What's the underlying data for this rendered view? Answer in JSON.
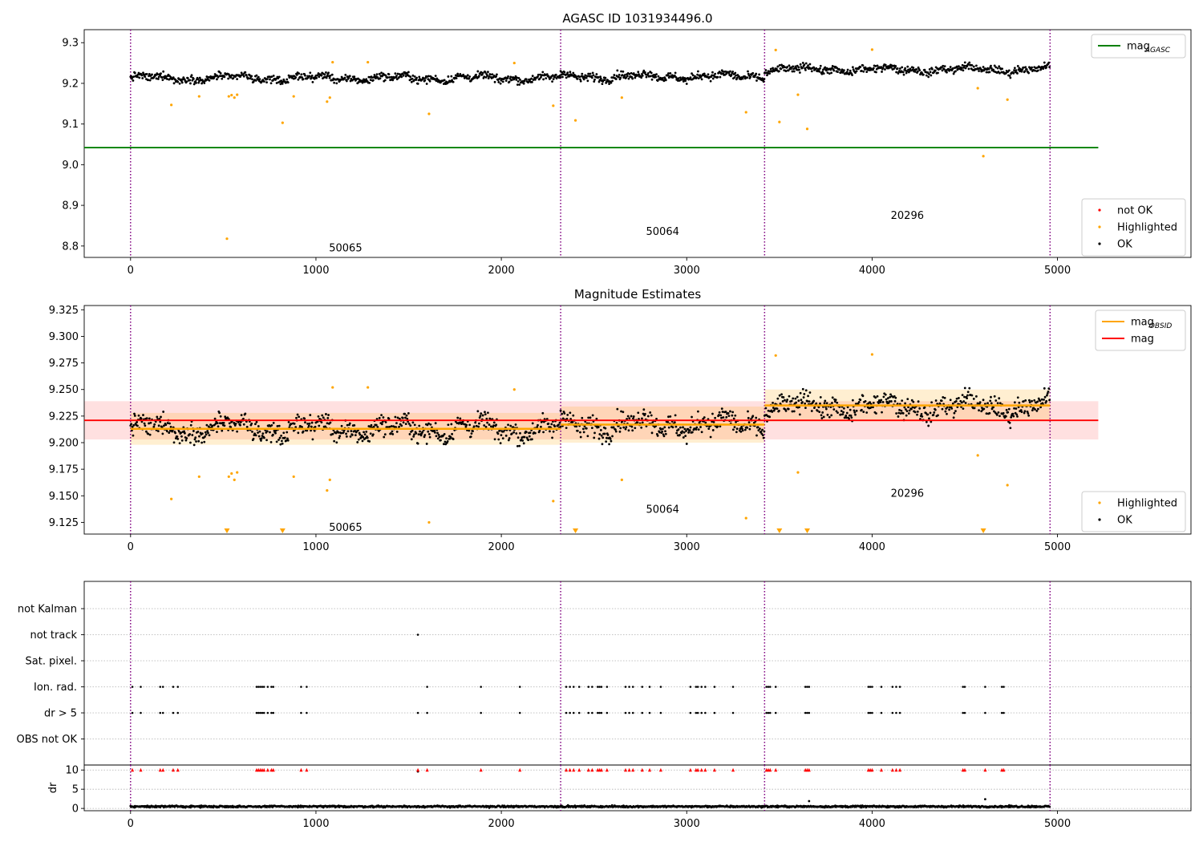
{
  "chart_data": [
    {
      "type": "scatter",
      "title": "AGASC ID 1031934496.0",
      "xlim": [
        -250,
        5720
      ],
      "ylim": [
        8.772,
        9.332
      ],
      "xticks": [
        0,
        1000,
        2000,
        3000,
        4000,
        5000
      ],
      "yticks": [
        8.8,
        8.9,
        9.0,
        9.1,
        9.2,
        9.3
      ],
      "ytick_labels": [
        "8.8",
        "8.9",
        "9.0",
        "9.1",
        "9.2",
        "9.3"
      ],
      "grid": false,
      "obsid_boundaries": [
        0,
        2320,
        3420,
        4960
      ],
      "obsid_labels": [
        {
          "text": "50065",
          "x": 1160,
          "y": 8.795
        },
        {
          "text": "50064",
          "x": 2870,
          "y": 8.835
        },
        {
          "text": "20296",
          "x": 4190,
          "y": 8.875
        }
      ],
      "horizontal_lines": [
        {
          "name": "mag_AGASC",
          "y": 9.042,
          "x": [
            -250,
            5220
          ],
          "color": "#008000"
        }
      ],
      "ok_segments": [
        {
          "x": [
            0,
            2320
          ],
          "mean": 9.213,
          "sd": 0.012
        },
        {
          "x": [
            2320,
            3420
          ],
          "mean": 9.217,
          "sd": 0.013
        },
        {
          "x": [
            3420,
            4960
          ],
          "mean": 9.234,
          "sd": 0.012
        }
      ],
      "highlighted_points": [
        [
          220,
          9.147
        ],
        [
          370,
          9.168
        ],
        [
          520,
          8.818
        ],
        [
          530,
          9.168
        ],
        [
          545,
          9.171
        ],
        [
          560,
          9.165
        ],
        [
          575,
          9.172
        ],
        [
          820,
          9.103
        ],
        [
          880,
          9.168
        ],
        [
          1060,
          9.155
        ],
        [
          1075,
          9.165
        ],
        [
          1090,
          9.252
        ],
        [
          1280,
          9.252
        ],
        [
          1610,
          9.125
        ],
        [
          2070,
          9.25
        ],
        [
          2280,
          9.145
        ],
        [
          2400,
          9.109
        ],
        [
          2650,
          9.165
        ],
        [
          3320,
          9.129
        ],
        [
          3480,
          9.282
        ],
        [
          3500,
          9.105
        ],
        [
          3600,
          9.172
        ],
        [
          3650,
          9.088
        ],
        [
          4000,
          9.283
        ],
        [
          4570,
          9.188
        ],
        [
          4600,
          9.021
        ],
        [
          4730,
          9.16
        ]
      ],
      "legend_upper": {
        "position": "upper right",
        "entries": [
          {
            "label": "mag",
            "sub": "AGASC",
            "color": "#008000"
          }
        ]
      },
      "legend_lower": {
        "position": "lower right",
        "entries": [
          {
            "label": "not OK",
            "color": "#ff0000"
          },
          {
            "label": "Highlighted",
            "color": "#ffa500"
          },
          {
            "label": "OK",
            "color": "#000000"
          }
        ]
      },
      "xtick_labels": [
        "0",
        "1000",
        "2000",
        "3000",
        "4000",
        "5000"
      ]
    },
    {
      "type": "scatter",
      "title": "Magnitude Estimates",
      "xlim": [
        -250,
        5720
      ],
      "ylim": [
        9.114,
        9.329
      ],
      "xticks": [
        0,
        1000,
        2000,
        3000,
        4000,
        5000
      ],
      "yticks": [
        9.125,
        9.15,
        9.175,
        9.2,
        9.225,
        9.25,
        9.275,
        9.3,
        9.325
      ],
      "ytick_labels": [
        "9.125",
        "9.150",
        "9.175",
        "9.200",
        "9.225",
        "9.250",
        "9.275",
        "9.300",
        "9.325"
      ],
      "grid": false,
      "obsid_boundaries": [
        0,
        2320,
        3420,
        4960
      ],
      "obsid_labels": [
        {
          "text": "50065",
          "x": 1160,
          "y": 9.12
        },
        {
          "text": "50064",
          "x": 2870,
          "y": 9.137
        },
        {
          "text": "20296",
          "x": 4190,
          "y": 9.152
        }
      ],
      "mag_line": {
        "name": "mag",
        "y": 9.221,
        "band": [
          9.203,
          9.239
        ],
        "x": [
          -250,
          5220
        ],
        "color": "#ff0000"
      },
      "mag_obsid_segments": [
        {
          "x": [
            0,
            2320
          ],
          "y": 9.213,
          "band": [
            9.198,
            9.228
          ]
        },
        {
          "x": [
            2320,
            3420
          ],
          "y": 9.217,
          "band": [
            9.2,
            9.234
          ]
        },
        {
          "x": [
            3420,
            4960
          ],
          "y": 9.235,
          "band": [
            9.22,
            9.25
          ]
        }
      ],
      "highlighted_points": [
        [
          220,
          9.147
        ],
        [
          370,
          9.168
        ],
        [
          530,
          9.168
        ],
        [
          545,
          9.171
        ],
        [
          560,
          9.165
        ],
        [
          575,
          9.172
        ],
        [
          880,
          9.168
        ],
        [
          1060,
          9.155
        ],
        [
          1075,
          9.165
        ],
        [
          1090,
          9.252
        ],
        [
          1280,
          9.252
        ],
        [
          1610,
          9.125
        ],
        [
          2070,
          9.25
        ],
        [
          2280,
          9.145
        ],
        [
          2650,
          9.165
        ],
        [
          3320,
          9.129
        ],
        [
          3480,
          9.282
        ],
        [
          3600,
          9.172
        ],
        [
          4000,
          9.283
        ],
        [
          4570,
          9.188
        ],
        [
          4730,
          9.16
        ]
      ],
      "below_range_markers": [
        520,
        820,
        2400,
        3500,
        3650,
        4600
      ],
      "legend_upper": {
        "position": "upper right",
        "entries": [
          {
            "label": "mag",
            "sub": "OBSID",
            "color": "#ffa500"
          },
          {
            "label": "mag",
            "sub": "",
            "color": "#ff0000"
          }
        ]
      },
      "legend_lower": {
        "position": "lower right",
        "entries": [
          {
            "label": "Highlighted",
            "color": "#ffa500"
          },
          {
            "label": "OK",
            "color": "#000000"
          }
        ]
      },
      "xtick_labels": [
        "0",
        "1000",
        "2000",
        "3000",
        "4000",
        "5000"
      ]
    },
    {
      "type": "scatter",
      "title": "",
      "xlim": [
        -250,
        5720
      ],
      "obsid_boundaries": [
        0,
        2320,
        3420,
        4960
      ],
      "flag_rows": [
        "not Kalman",
        "not track",
        "Sat. pixel.",
        "Ion. rad.",
        "dr > 5",
        "OBS not OK"
      ],
      "flag_points": {
        "not track": [
          1550
        ],
        "Ion. rad.": [
          10,
          55,
          160,
          175,
          230,
          255,
          680,
          690,
          700,
          710,
          720,
          740,
          760,
          770,
          920,
          950,
          1600,
          1890,
          2100,
          2350,
          2370,
          2390,
          2420,
          2470,
          2490,
          2520,
          2530,
          2540,
          2570,
          2670,
          2690,
          2710,
          2760,
          2800,
          2860,
          3020,
          3050,
          3060,
          3080,
          3100,
          3150,
          3250,
          3430,
          3440,
          3450,
          3480,
          3640,
          3650,
          3660,
          3980,
          3990,
          4000,
          4050,
          4110,
          4130,
          4150,
          4490,
          4500,
          4610,
          4700,
          4710
        ],
        "dr > 5": [
          10,
          55,
          160,
          175,
          230,
          255,
          680,
          690,
          700,
          710,
          720,
          740,
          760,
          770,
          920,
          950,
          1550,
          1600,
          1890,
          2100,
          2350,
          2370,
          2390,
          2420,
          2470,
          2490,
          2520,
          2530,
          2540,
          2570,
          2670,
          2690,
          2710,
          2760,
          2800,
          2860,
          3020,
          3050,
          3060,
          3080,
          3100,
          3150,
          3250,
          3430,
          3440,
          3450,
          3480,
          3640,
          3650,
          3660,
          3980,
          3990,
          4000,
          4050,
          4110,
          4130,
          4150,
          4490,
          4500,
          4610,
          4700,
          4710
        ]
      },
      "xtick_labels": [
        "0",
        "1000",
        "2000",
        "3000",
        "4000",
        "5000"
      ]
    },
    {
      "type": "scatter",
      "title": "",
      "xlim": [
        -250,
        5720
      ],
      "ylim": [
        -0.6,
        11.3
      ],
      "ylabel": "dr",
      "yticks": [
        0,
        5,
        10
      ],
      "ytick_labels": [
        "0",
        "5",
        "10"
      ],
      "obsid_boundaries": [
        0,
        2320,
        3420,
        4960
      ],
      "dr_baseline": {
        "mean": 0.5,
        "spread": 0.35,
        "x": [
          0,
          4960
        ]
      },
      "dr_outliers": [
        [
          1550,
          9.6
        ],
        [
          4610,
          2.4
        ],
        [
          3660,
          1.9
        ]
      ],
      "dr_clip_markers": [
        10,
        55,
        160,
        175,
        230,
        255,
        680,
        690,
        700,
        710,
        720,
        740,
        760,
        770,
        920,
        950,
        1550,
        1600,
        1890,
        2100,
        2350,
        2370,
        2390,
        2420,
        2470,
        2490,
        2520,
        2530,
        2540,
        2570,
        2670,
        2690,
        2710,
        2760,
        2800,
        2860,
        3020,
        3050,
        3060,
        3080,
        3100,
        3150,
        3250,
        3430,
        3440,
        3450,
        3480,
        3640,
        3650,
        3660,
        3980,
        3990,
        4000,
        4050,
        4110,
        4130,
        4150,
        4490,
        4500,
        4610,
        4700,
        4710
      ],
      "xticks": [
        0,
        1000,
        2000,
        3000,
        4000,
        5000
      ],
      "xtick_labels": [
        "0",
        "1000",
        "2000",
        "3000",
        "4000",
        "5000"
      ]
    }
  ]
}
